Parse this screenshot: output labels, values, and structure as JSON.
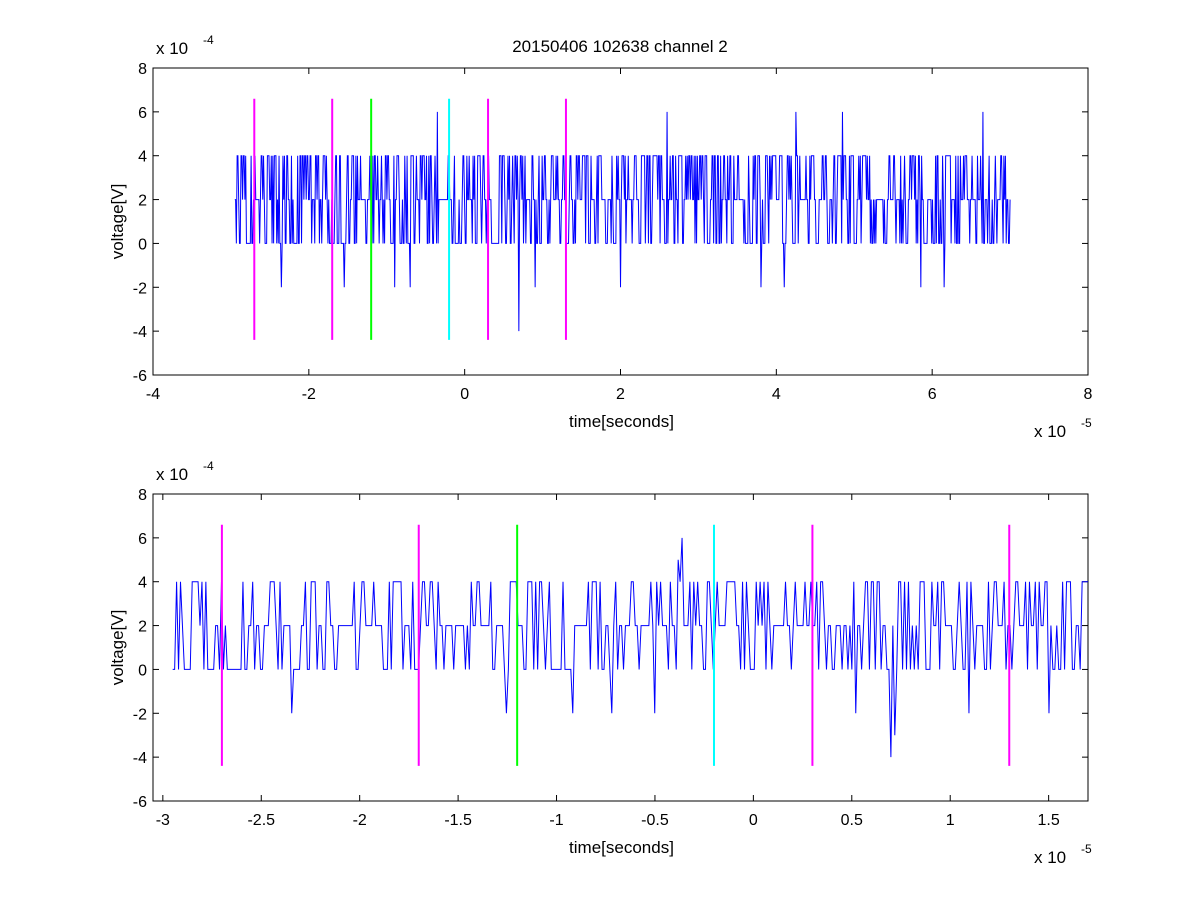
{
  "figure": {
    "title": "20150406 102638 channel 2"
  },
  "chart_data": [
    {
      "type": "line",
      "title": "20150406 102638 channel 2",
      "xlabel": "time[seconds]",
      "ylabel": "voltage[V]",
      "x_exponent_label": "x 10",
      "x_exponent": "-5",
      "y_exponent_label": "x 10",
      "y_exponent": "-4",
      "xlim": [
        -4,
        8
      ],
      "ylim": [
        -6,
        8
      ],
      "xticks": [
        -4,
        -2,
        0,
        2,
        4,
        6,
        8
      ],
      "xtick_labels": [
        "-4",
        "-2",
        "0",
        "2",
        "4",
        "6",
        "8"
      ],
      "yticks": [
        -6,
        -4,
        -2,
        0,
        2,
        4,
        6,
        8
      ],
      "ytick_labels": [
        "-6",
        "-4",
        "-2",
        "0",
        "2",
        "4",
        "6",
        "8"
      ],
      "grid": false,
      "signal": {
        "color": "#0000ff",
        "x_start": -2.95,
        "x_end": 7.0,
        "levels": [
          0,
          2,
          4
        ],
        "samples": 1000,
        "spikes": [
          {
            "x": -2.35,
            "y": -2
          },
          {
            "x": -1.55,
            "y": -2
          },
          {
            "x": -0.9,
            "y": -2
          },
          {
            "x": -0.7,
            "y": -2
          },
          {
            "x": -0.35,
            "y": 6
          },
          {
            "x": 0.7,
            "y": -4
          },
          {
            "x": 0.72,
            "y": 4
          },
          {
            "x": 0.9,
            "y": -2
          },
          {
            "x": 2.0,
            "y": -2
          },
          {
            "x": 2.6,
            "y": 6
          },
          {
            "x": 3.8,
            "y": -2
          },
          {
            "x": 4.1,
            "y": -2
          },
          {
            "x": 4.25,
            "y": 6
          },
          {
            "x": 4.85,
            "y": 6
          },
          {
            "x": 5.85,
            "y": -2
          },
          {
            "x": 6.15,
            "y": -2
          },
          {
            "x": 6.65,
            "y": 6
          }
        ]
      },
      "markers": [
        {
          "x": -2.7,
          "ymin": -4.4,
          "ymax": 6.6,
          "color": "#ff00ff"
        },
        {
          "x": -1.7,
          "ymin": -4.4,
          "ymax": 6.6,
          "color": "#ff00ff"
        },
        {
          "x": -1.2,
          "ymin": -4.4,
          "ymax": 6.6,
          "color": "#00ff00"
        },
        {
          "x": -0.2,
          "ymin": -4.4,
          "ymax": 6.6,
          "color": "#00ffff"
        },
        {
          "x": 0.3,
          "ymin": -4.4,
          "ymax": 6.6,
          "color": "#ff00ff"
        },
        {
          "x": 1.3,
          "ymin": -4.4,
          "ymax": 6.6,
          "color": "#ff00ff"
        }
      ]
    },
    {
      "type": "line",
      "title": "",
      "xlabel": "time[seconds]",
      "ylabel": "voltage[V]",
      "x_exponent_label": "x 10",
      "x_exponent": "-5",
      "y_exponent_label": "x 10",
      "y_exponent": "-4",
      "xlim": [
        -3.05,
        1.7
      ],
      "ylim": [
        -6,
        8
      ],
      "xticks": [
        -3,
        -2.5,
        -2,
        -1.5,
        -1,
        -0.5,
        0,
        0.5,
        1,
        1.5
      ],
      "xtick_labels": [
        "-3",
        "-2.5",
        "-2",
        "-1.5",
        "-1",
        "-0.5",
        "0",
        "0.5",
        "1",
        "1.5"
      ],
      "yticks": [
        -6,
        -4,
        -2,
        0,
        2,
        4,
        6,
        8
      ],
      "ytick_labels": [
        "-6",
        "-4",
        "-2",
        "0",
        "2",
        "4",
        "6",
        "8"
      ],
      "grid": false,
      "signal": {
        "color": "#0000ff",
        "x_start": -2.95,
        "x_end": 1.7,
        "levels": [
          0,
          2,
          4
        ],
        "samples": 470,
        "spikes": [
          {
            "x": -2.35,
            "y": -2
          },
          {
            "x": -2.13,
            "y": 0
          },
          {
            "x": -1.25,
            "y": -2
          },
          {
            "x": -0.92,
            "y": -2
          },
          {
            "x": -0.72,
            "y": -2
          },
          {
            "x": -0.36,
            "y": 6
          },
          {
            "x": -0.38,
            "y": 5
          },
          {
            "x": -0.5,
            "y": -2
          },
          {
            "x": 0.52,
            "y": -2
          },
          {
            "x": 0.7,
            "y": -4
          },
          {
            "x": 0.72,
            "y": -3
          },
          {
            "x": 0.75,
            "y": 4
          },
          {
            "x": 1.1,
            "y": -2
          },
          {
            "x": 1.5,
            "y": -2
          }
        ]
      },
      "markers": [
        {
          "x": -2.7,
          "ymin": -4.4,
          "ymax": 6.6,
          "color": "#ff00ff"
        },
        {
          "x": -1.7,
          "ymin": -4.4,
          "ymax": 6.6,
          "color": "#ff00ff"
        },
        {
          "x": -1.2,
          "ymin": -4.4,
          "ymax": 6.6,
          "color": "#00ff00"
        },
        {
          "x": -0.2,
          "ymin": -4.4,
          "ymax": 6.6,
          "color": "#00ffff"
        },
        {
          "x": 0.3,
          "ymin": -4.4,
          "ymax": 6.6,
          "color": "#ff00ff"
        },
        {
          "x": 1.3,
          "ymin": -4.4,
          "ymax": 6.6,
          "color": "#ff00ff"
        }
      ]
    }
  ]
}
